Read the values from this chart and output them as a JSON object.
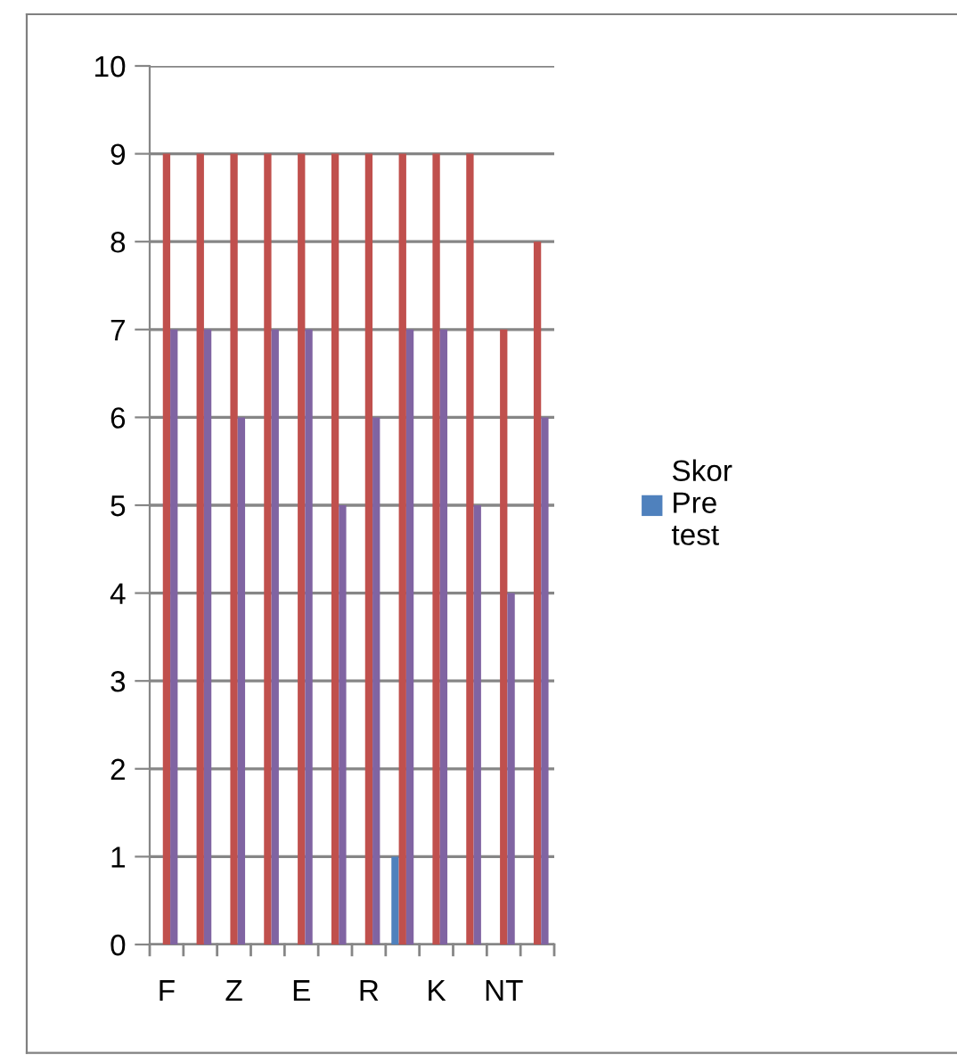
{
  "chart_data": {
    "type": "bar",
    "categories": [
      "F",
      null,
      "Z",
      null,
      "E",
      null,
      "R",
      null,
      "K",
      null,
      "NT",
      null
    ],
    "series": [
      {
        "name": "Skor\nPre\ntest",
        "color": "#4f81bd",
        "values": [
          0,
          0,
          0,
          0,
          0,
          0,
          0,
          1,
          0,
          0,
          0,
          0
        ]
      },
      {
        "color": "#c0504d",
        "values": [
          9,
          9,
          9,
          9,
          9,
          9,
          9,
          9,
          9,
          9,
          7,
          8
        ]
      },
      {
        "color": "#8064a2",
        "values": [
          7,
          7,
          6,
          7,
          7,
          5,
          6,
          7,
          7,
          5,
          4,
          6
        ]
      }
    ],
    "ylim": [
      0,
      10
    ],
    "yticks": [
      0,
      1,
      2,
      3,
      4,
      5,
      6,
      7,
      8,
      9,
      10
    ],
    "grid": "y",
    "legend": "right"
  }
}
